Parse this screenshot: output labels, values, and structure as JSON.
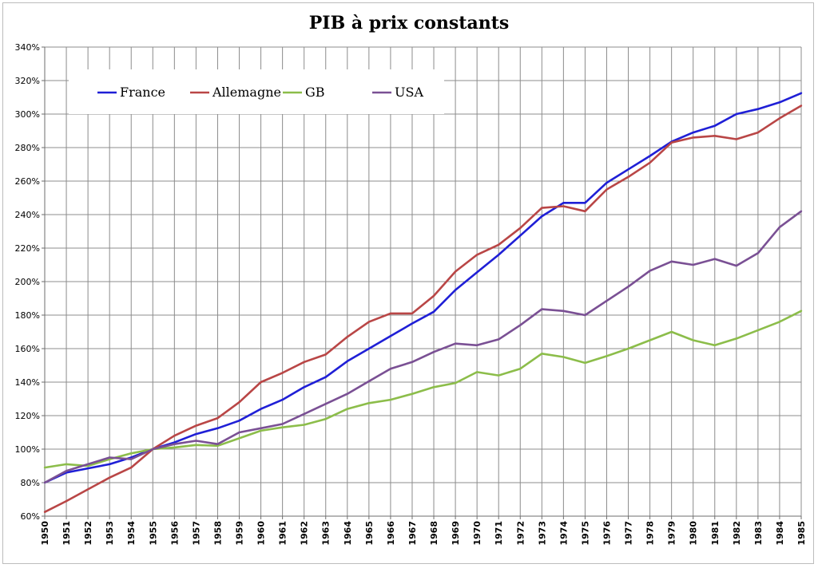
{
  "chart_data": {
    "type": "line",
    "title": "PIB à prix constants",
    "xlabel": "",
    "ylabel": "",
    "ylim": [
      60,
      340
    ],
    "y_ticks": [
      60,
      80,
      100,
      120,
      140,
      160,
      180,
      200,
      220,
      240,
      260,
      280,
      300,
      320,
      340
    ],
    "y_tick_labels": [
      "60%",
      "80%",
      "100%",
      "120%",
      "140%",
      "160%",
      "180%",
      "200%",
      "220%",
      "240%",
      "260%",
      "280%",
      "300%",
      "320%",
      "340%"
    ],
    "x": [
      "1950",
      "1951",
      "1952",
      "1953",
      "1954",
      "1955",
      "1956",
      "1957",
      "1958",
      "1959",
      "1960",
      "1961",
      "1962",
      "1963",
      "1964",
      "1965",
      "1966",
      "1967",
      "1968",
      "1969",
      "1970",
      "1971",
      "1972",
      "1973",
      "1974",
      "1975",
      "1976",
      "1977",
      "1978",
      "1979",
      "1980",
      "1981",
      "1982",
      "1983",
      "1984",
      "1985"
    ],
    "grid": true,
    "legend_position": "top-left",
    "series": [
      {
        "name": "France",
        "color": "#1f1fd6",
        "values": [
          80,
          86,
          88.5,
          91,
          95,
          100,
          104,
          109,
          112.5,
          117,
          124,
          129.5,
          137,
          143,
          152.5,
          160,
          167.5,
          175,
          182,
          195,
          205.5,
          216,
          227.5,
          239,
          247,
          247,
          259,
          267,
          275,
          283.5,
          289,
          293,
          300,
          303,
          307,
          312.5
        ]
      },
      {
        "name": "Allemagne",
        "color": "#b94646",
        "values": [
          62.5,
          69,
          76,
          83,
          89,
          100,
          108,
          114,
          118.5,
          128,
          140,
          145.5,
          152,
          156.5,
          167,
          176,
          181,
          181,
          191.5,
          206,
          216,
          222,
          232,
          244,
          245,
          242,
          255,
          262.5,
          271,
          283,
          286,
          287,
          285,
          289,
          297.5,
          305
        ]
      },
      {
        "name": "GB",
        "color": "#8cbd4a",
        "values": [
          89,
          91,
          90,
          94,
          97.5,
          100,
          101,
          102.5,
          102,
          106.5,
          111,
          113,
          114.5,
          118,
          124,
          127.5,
          129.5,
          133,
          137,
          139.5,
          146,
          144,
          148,
          157,
          155,
          151.5,
          155.5,
          160,
          165,
          170,
          165,
          162,
          166,
          171,
          176,
          182.5
        ]
      },
      {
        "name": "USA",
        "color": "#7a5094",
        "values": [
          80,
          87,
          91,
          95,
          94,
          100,
          103,
          105,
          103,
          110,
          112.5,
          115,
          121,
          127,
          133,
          140.5,
          148,
          152,
          158,
          163,
          162,
          165.5,
          174,
          183.5,
          182.5,
          180,
          188.5,
          197,
          206.5,
          212,
          210,
          213.5,
          209.5,
          217,
          232.5,
          242
        ]
      }
    ]
  }
}
